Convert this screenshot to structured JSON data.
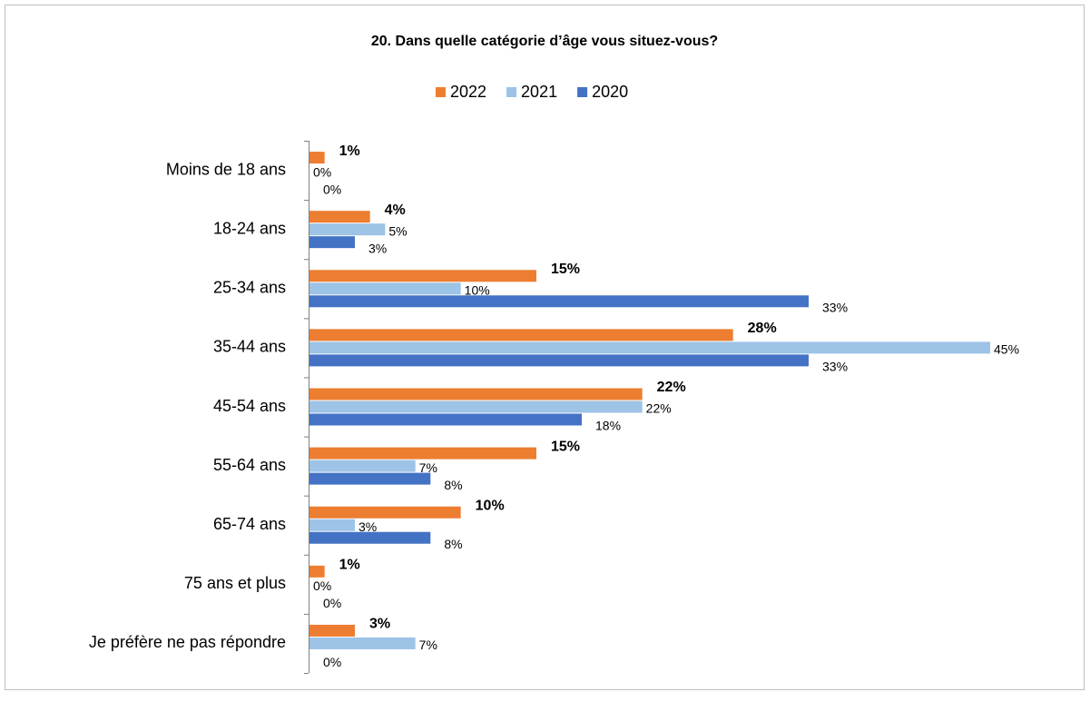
{
  "chart_data": {
    "type": "bar",
    "orientation": "horizontal",
    "title": "20. Dans quelle catégorie d’âge vous situez-vous?",
    "categories": [
      "Moins de 18 ans",
      "18-24 ans",
      "25-34 ans",
      "35-44 ans",
      "45-54 ans",
      "55-64 ans",
      "65-74 ans",
      "75 ans et plus",
      "Je préfère ne pas répondre"
    ],
    "series": [
      {
        "name": "2022",
        "color": "#ed7d31",
        "values": [
          1,
          4,
          15,
          28,
          22,
          15,
          10,
          1,
          3
        ],
        "value_labels": [
          "1%",
          "4%",
          "15%",
          "28%",
          "22%",
          "15%",
          "10%",
          "1%",
          "3%"
        ]
      },
      {
        "name": "2021",
        "color": "#9dc3e6",
        "values": [
          0,
          5,
          10,
          45,
          22,
          7,
          3,
          0,
          7
        ],
        "value_labels": [
          "0%",
          "5%",
          "10%",
          "45%",
          "22%",
          "7%",
          "3%",
          "0%",
          "7%"
        ]
      },
      {
        "name": "2020",
        "color": "#4472c4",
        "values": [
          0,
          3,
          33,
          33,
          18,
          8,
          8,
          0,
          0
        ],
        "value_labels": [
          "0%",
          "3%",
          "33%",
          "33%",
          "18%",
          "8%",
          "8%",
          "0%",
          "0%"
        ]
      }
    ],
    "legend": "top"
  }
}
